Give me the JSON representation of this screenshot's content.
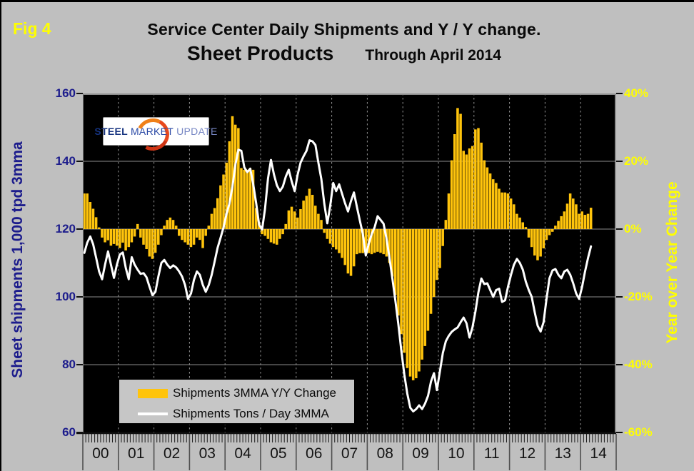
{
  "figure_label": "Fig 4",
  "title_line1": "Service Center Daily Shipments and Y / Y change.",
  "title_line2_main": "Sheet Products",
  "title_line2_sub": "Through April 2014",
  "logo": {
    "word1": "STEEL",
    "word2": "MARKET",
    "word3": "UPDATE"
  },
  "legend": {
    "bar_label": "Shipments 3MMA Y/Y Change",
    "line_label": "Shipments Tons / Day 3MMA"
  },
  "colors": {
    "background": "#bfbfbf",
    "plot_background": "#000000",
    "bar": "#ffc40c",
    "line": "#ffffff",
    "left_axis_text": "#1c1c8c",
    "right_axis_text": "#ffff00",
    "figure_label_text": "#ffff00"
  },
  "chart_data": {
    "type": "bar+line combo, monthly",
    "title": "Service Center Daily Shipments and Y / Y change. Sheet Products Through April 2014",
    "x_start": "2000-01",
    "x_end": "2014-04",
    "frequency": "monthly",
    "x_axis_span_months": 180,
    "x_year_labels": [
      "00",
      "01",
      "02",
      "03",
      "04",
      "05",
      "06",
      "07",
      "08",
      "09",
      "10",
      "11",
      "12",
      "13",
      "14"
    ],
    "left_axis": {
      "label": "Sheet shipments 1,000 tpd 3mma",
      "ticks": [
        "160",
        "140",
        "120",
        "100",
        "80",
        "60"
      ],
      "range": [
        60,
        160
      ]
    },
    "right_axis": {
      "label": "Year over Year Change",
      "ticks": [
        "40%",
        "20%",
        "0%",
        "-20%",
        "-40%",
        "-60%"
      ],
      "range_percent": [
        -60,
        40
      ]
    },
    "grid": {
      "horizontal": "solid gray",
      "vertical": "dashed gray at year boundaries"
    },
    "legend_position": "inside plot, bottom-left",
    "series": [
      {
        "name": "Shipments 3MMA Y/Y Change",
        "type": "bar",
        "axis": "right",
        "unit": "percent",
        "color": "#ffc40c",
        "values": [
          10.5,
          10.5,
          8,
          6,
          3.5,
          0.5,
          -2.5,
          -3.9,
          -3.3,
          -4.9,
          -4.4,
          -4.9,
          -5.6,
          -4,
          -6.3,
          -5.3,
          -3.9,
          -2.2,
          1.5,
          -2.5,
          -4.6,
          -5.9,
          -8.1,
          -8.8,
          -7,
          -4.6,
          -1.8,
          1,
          2.7,
          3.4,
          2.7,
          1,
          -2,
          -3.2,
          -3.9,
          -4.6,
          -5.3,
          -4.6,
          -2.5,
          -3.2,
          -5.6,
          -2,
          1,
          4.5,
          6.2,
          9.1,
          12.9,
          16.1,
          19.6,
          25.9,
          33.3,
          30.8,
          29.8,
          18,
          17.5,
          17.5,
          18,
          17.5,
          6.2,
          1.7,
          -1.5,
          -2,
          -2.9,
          -3.9,
          -4.3,
          -4.6,
          -2.9,
          -1.5,
          1.5,
          5.5,
          6.6,
          5.2,
          3.4,
          5.9,
          8.4,
          9.8,
          11.9,
          10.1,
          6.9,
          4.5,
          2.7,
          -1.1,
          -2.9,
          -4.3,
          -5.3,
          -6,
          -7.1,
          -8.5,
          -10.6,
          -13.1,
          -13.8,
          -11,
          -7.4,
          -7.1,
          -7.1,
          -7.4,
          -7.1,
          -7.4,
          -7,
          -6.7,
          -7,
          -7.4,
          -8.1,
          -10,
          -14,
          -19.5,
          -25.5,
          -31,
          -36.5,
          -41,
          -43.5,
          -44.6,
          -44,
          -42,
          -38.5,
          -34.5,
          -30,
          -25,
          -20,
          -15,
          -11.5,
          -5,
          2.7,
          10.5,
          20.3,
          28,
          35.7,
          34,
          23.1,
          22,
          23.8,
          24.5,
          29.4,
          29.8,
          25.5,
          20.3,
          18.2,
          16.4,
          14.7,
          13.6,
          11.9,
          10.8,
          10.8,
          10.5,
          9,
          7.3,
          4.5,
          3.4,
          2,
          0.6,
          -2.5,
          -5.3,
          -7.8,
          -9.2,
          -8.1,
          -5.7,
          -3.2,
          -1.8,
          -0.8,
          1,
          2.4,
          3.8,
          5.2,
          7.5,
          10.5,
          9,
          7.3,
          4.5,
          5.2,
          4.2,
          4.5,
          6.3
        ]
      },
      {
        "name": "Shipments Tons / Day 3MMA",
        "type": "line",
        "axis": "left",
        "unit": "1,000 tons per day",
        "color": "#ffffff",
        "values": [
          113,
          116,
          117.8,
          115.5,
          111.5,
          107.5,
          105.2,
          109.5,
          113.4,
          109.5,
          105.6,
          109.5,
          112.5,
          113.1,
          108.5,
          105.2,
          111.7,
          109.5,
          108,
          106.8,
          107,
          105.8,
          103,
          100.5,
          101.5,
          106,
          110,
          110.9,
          109.5,
          108.5,
          109.3,
          108.7,
          107.5,
          106,
          103.5,
          99.4,
          101,
          105,
          107.5,
          106.5,
          103.5,
          101.5,
          103.5,
          106.5,
          110.5,
          114.5,
          117.5,
          120.5,
          124.5,
          127.6,
          132.6,
          139,
          143.4,
          143.1,
          138.2,
          136.8,
          137.8,
          133.3,
          127.6,
          121.3,
          119.9,
          126,
          135,
          140.4,
          136.1,
          132.9,
          131.2,
          132.5,
          135.5,
          137.5,
          134,
          131.2,
          136.1,
          139.6,
          141.5,
          143.1,
          146.2,
          145.9,
          144.8,
          139.6,
          134.7,
          127.5,
          121.7,
          126.9,
          133.6,
          131.2,
          133.2,
          130.4,
          127.6,
          125.2,
          128.3,
          130.8,
          126.5,
          122.5,
          118.5,
          112.2,
          115.7,
          118.5,
          120.6,
          123.8,
          122.7,
          121.6,
          117.1,
          111.5,
          105.2,
          98.8,
          91.8,
          84.1,
          77.1,
          71.5,
          67.3,
          66.2,
          66.9,
          68,
          66.9,
          68.5,
          70.8,
          75,
          77.5,
          72.5,
          78,
          83.4,
          86.9,
          88.5,
          89.7,
          90.4,
          91,
          92.5,
          93.9,
          92.2,
          88,
          91,
          95.7,
          101.3,
          105.4,
          103.8,
          104,
          102,
          100,
          102,
          102.4,
          98.5,
          99,
          103,
          106.5,
          109.5,
          111.2,
          110,
          108,
          104.5,
          102,
          100,
          95.5,
          91.5,
          89.8,
          92.5,
          99.5,
          105.5,
          107.8,
          108.2,
          106.5,
          105.5,
          107.5,
          108,
          106.5,
          104,
          101,
          99.4,
          103,
          107.5,
          111.5,
          114.9
        ]
      }
    ]
  }
}
